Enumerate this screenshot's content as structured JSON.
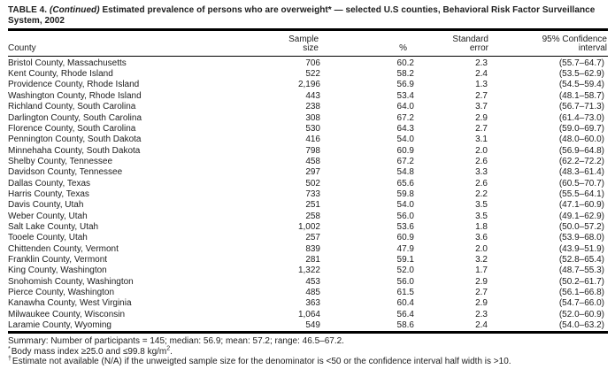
{
  "title": {
    "label": "TABLE 4.",
    "continued": "(Continued)",
    "rest": "Estimated prevalence of persons who are overweight* — selected U.S counties, Behavioral Risk Factor Surveillance System, 2002"
  },
  "table": {
    "header": {
      "county": "County",
      "sample_size_line1": "Sample",
      "sample_size_line2": "size",
      "percent": "%",
      "standard_error_line1": "Standard",
      "standard_error_line2": "error",
      "confidence_line1": "95% Confidence",
      "confidence_line2": "interval"
    },
    "rows": [
      [
        "Bristol County, Massachusetts",
        "706",
        "60.2",
        "2.3",
        "(55.7–64.7)"
      ],
      [
        "Kent County, Rhode Island",
        "522",
        "58.2",
        "2.4",
        "(53.5–62.9)"
      ],
      [
        "Providence County, Rhode Island",
        "2,196",
        "56.9",
        "1.3",
        "(54.5–59.4)"
      ],
      [
        "Washington County, Rhode Island",
        "443",
        "53.4",
        "2.7",
        "(48.1–58.7)"
      ],
      [
        "Richland County, South Carolina",
        "238",
        "64.0",
        "3.7",
        "(56.7–71.3)"
      ],
      [
        "Darlington County, South Carolina",
        "308",
        "67.2",
        "2.9",
        "(61.4–73.0)"
      ],
      [
        "Florence County, South Carolina",
        "530",
        "64.3",
        "2.7",
        "(59.0–69.7)"
      ],
      [
        "Pennington County, South Dakota",
        "416",
        "54.0",
        "3.1",
        "(48.0–60.0)"
      ],
      [
        "Minnehaha County, South Dakota",
        "798",
        "60.9",
        "2.0",
        "(56.9–64.8)"
      ],
      [
        "Shelby County, Tennessee",
        "458",
        "67.2",
        "2.6",
        "(62.2–72.2)"
      ],
      [
        "Davidson County, Tennessee",
        "297",
        "54.8",
        "3.3",
        "(48.3–61.4)"
      ],
      [
        "Dallas County, Texas",
        "502",
        "65.6",
        "2.6",
        "(60.5–70.7)"
      ],
      [
        "Harris County, Texas",
        "733",
        "59.8",
        "2.2",
        "(55.5–64.1)"
      ],
      [
        "Davis County, Utah",
        "251",
        "54.0",
        "3.5",
        "(47.1–60.9)"
      ],
      [
        "Weber County, Utah",
        "258",
        "56.0",
        "3.5",
        "(49.1–62.9)"
      ],
      [
        "Salt Lake County, Utah",
        "1,002",
        "53.6",
        "1.8",
        "(50.0–57.2)"
      ],
      [
        "Tooele County, Utah",
        "257",
        "60.9",
        "3.6",
        "(53.9–68.0)"
      ],
      [
        "Chittenden County, Vermont",
        "839",
        "47.9",
        "2.0",
        "(43.9–51.9)"
      ],
      [
        "Franklin County, Vermont",
        "281",
        "59.1",
        "3.2",
        "(52.8–65.4)"
      ],
      [
        "King County, Washington",
        "1,322",
        "52.0",
        "1.7",
        "(48.7–55.3)"
      ],
      [
        "Snohomish County, Washington",
        "453",
        "56.0",
        "2.9",
        "(50.2–61.7)"
      ],
      [
        "Pierce County, Washington",
        "485",
        "61.5",
        "2.7",
        "(56.1–66.8)"
      ],
      [
        "Kanawha County, West Virginia",
        "363",
        "60.4",
        "2.9",
        "(54.7–66.0)"
      ],
      [
        "Milwaukee County, Wisconsin",
        "1,064",
        "56.4",
        "2.3",
        "(52.0–60.9)"
      ],
      [
        "Laramie County, Wyoming",
        "549",
        "58.6",
        "2.4",
        "(54.0–63.2)"
      ]
    ],
    "cell_names": [
      "county-cell",
      "sample-size-cell",
      "percent-cell",
      "standard-error-cell",
      "confidence-interval-cell"
    ]
  },
  "summary": "Summary: Number of participants = 145; median: 56.9; mean: 57.2; range: 46.5–67.2.",
  "footnotes": {
    "bmi_marker": "*",
    "bmi_text": "Body mass index ≥25.0 and ≤99.8 kg/m",
    "bmi_sup": "2",
    "bmi_end": ".",
    "estimate_marker": "†",
    "estimate_text": "Estimate not available (N/A) if the unweigted sample size for the denominator is <50 or the confidence interval half width is >10."
  }
}
